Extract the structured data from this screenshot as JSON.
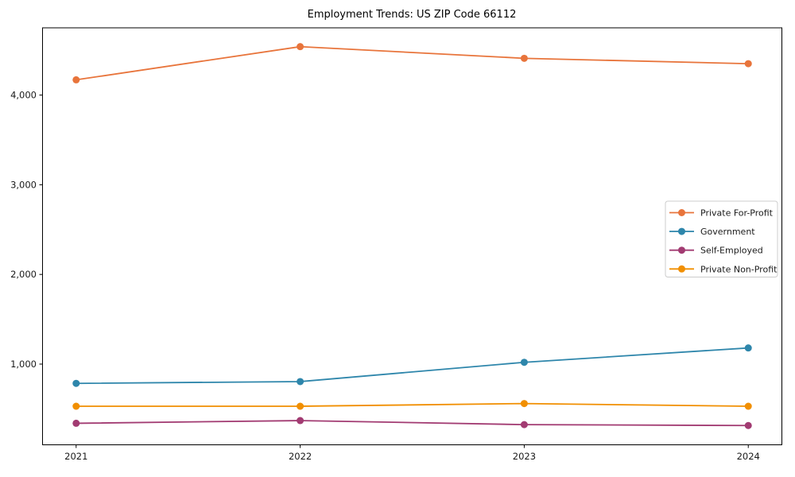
{
  "figure": {
    "background": "#ffffff",
    "axis_color": "#000000",
    "text_color": "#1a1a1a",
    "legend_border_color": "#cccccc",
    "legend_background": "#ffffff"
  },
  "chart_data": {
    "type": "line",
    "title": "Employment Trends: US ZIP Code 66112",
    "xlabel": "",
    "ylabel": "",
    "x": [
      2021,
      2022,
      2023,
      2024
    ],
    "x_tick_labels": [
      "2021",
      "2022",
      "2023",
      "2024"
    ],
    "y_ticks": [
      1000,
      2000,
      3000,
      4000
    ],
    "y_tick_labels": [
      "1,000",
      "2,000",
      "3,000",
      "4,000"
    ],
    "xlim": [
      2020.85,
      2024.15
    ],
    "ylim": [
      100,
      4750
    ],
    "grid": false,
    "legend_position": "center-right",
    "marker": "circle",
    "series": [
      {
        "name": "Private For-Profit",
        "color": "#E8743B",
        "values": [
          4170,
          4540,
          4410,
          4350
        ]
      },
      {
        "name": "Government",
        "color": "#2E86AB",
        "values": [
          785,
          805,
          1020,
          1180
        ]
      },
      {
        "name": "Self-Employed",
        "color": "#A23B72",
        "values": [
          340,
          370,
          325,
          315
        ]
      },
      {
        "name": "Private Non-Profit",
        "color": "#F18F01",
        "values": [
          530,
          530,
          560,
          530
        ]
      }
    ]
  }
}
